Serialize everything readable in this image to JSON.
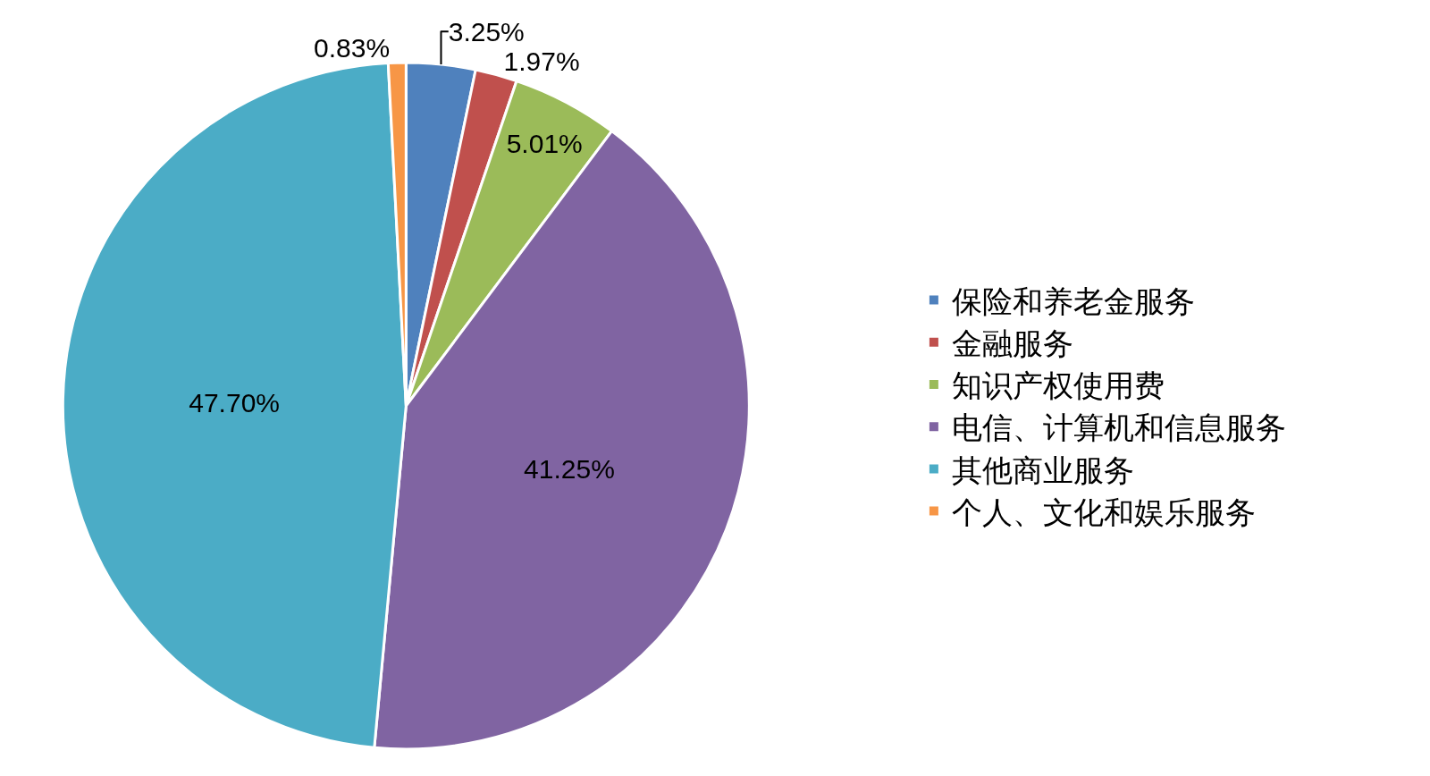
{
  "chart_data": {
    "type": "pie",
    "categories": [
      "保险和养老金服务",
      "金融服务",
      "知识产权使用费",
      "电信、计算机和信息服务",
      "其他商业服务",
      "个人、文化和娱乐服务"
    ],
    "values": [
      3.25,
      1.97,
      5.01,
      41.25,
      47.7,
      0.83
    ],
    "value_labels": [
      "3.25%",
      "1.97%",
      "5.01%",
      "41.25%",
      "47.70%",
      "0.83%"
    ],
    "colors": [
      "#4f81bd",
      "#c0504d",
      "#9bbb59",
      "#8064a2",
      "#4bacc6",
      "#f79646"
    ],
    "legend": "right"
  }
}
